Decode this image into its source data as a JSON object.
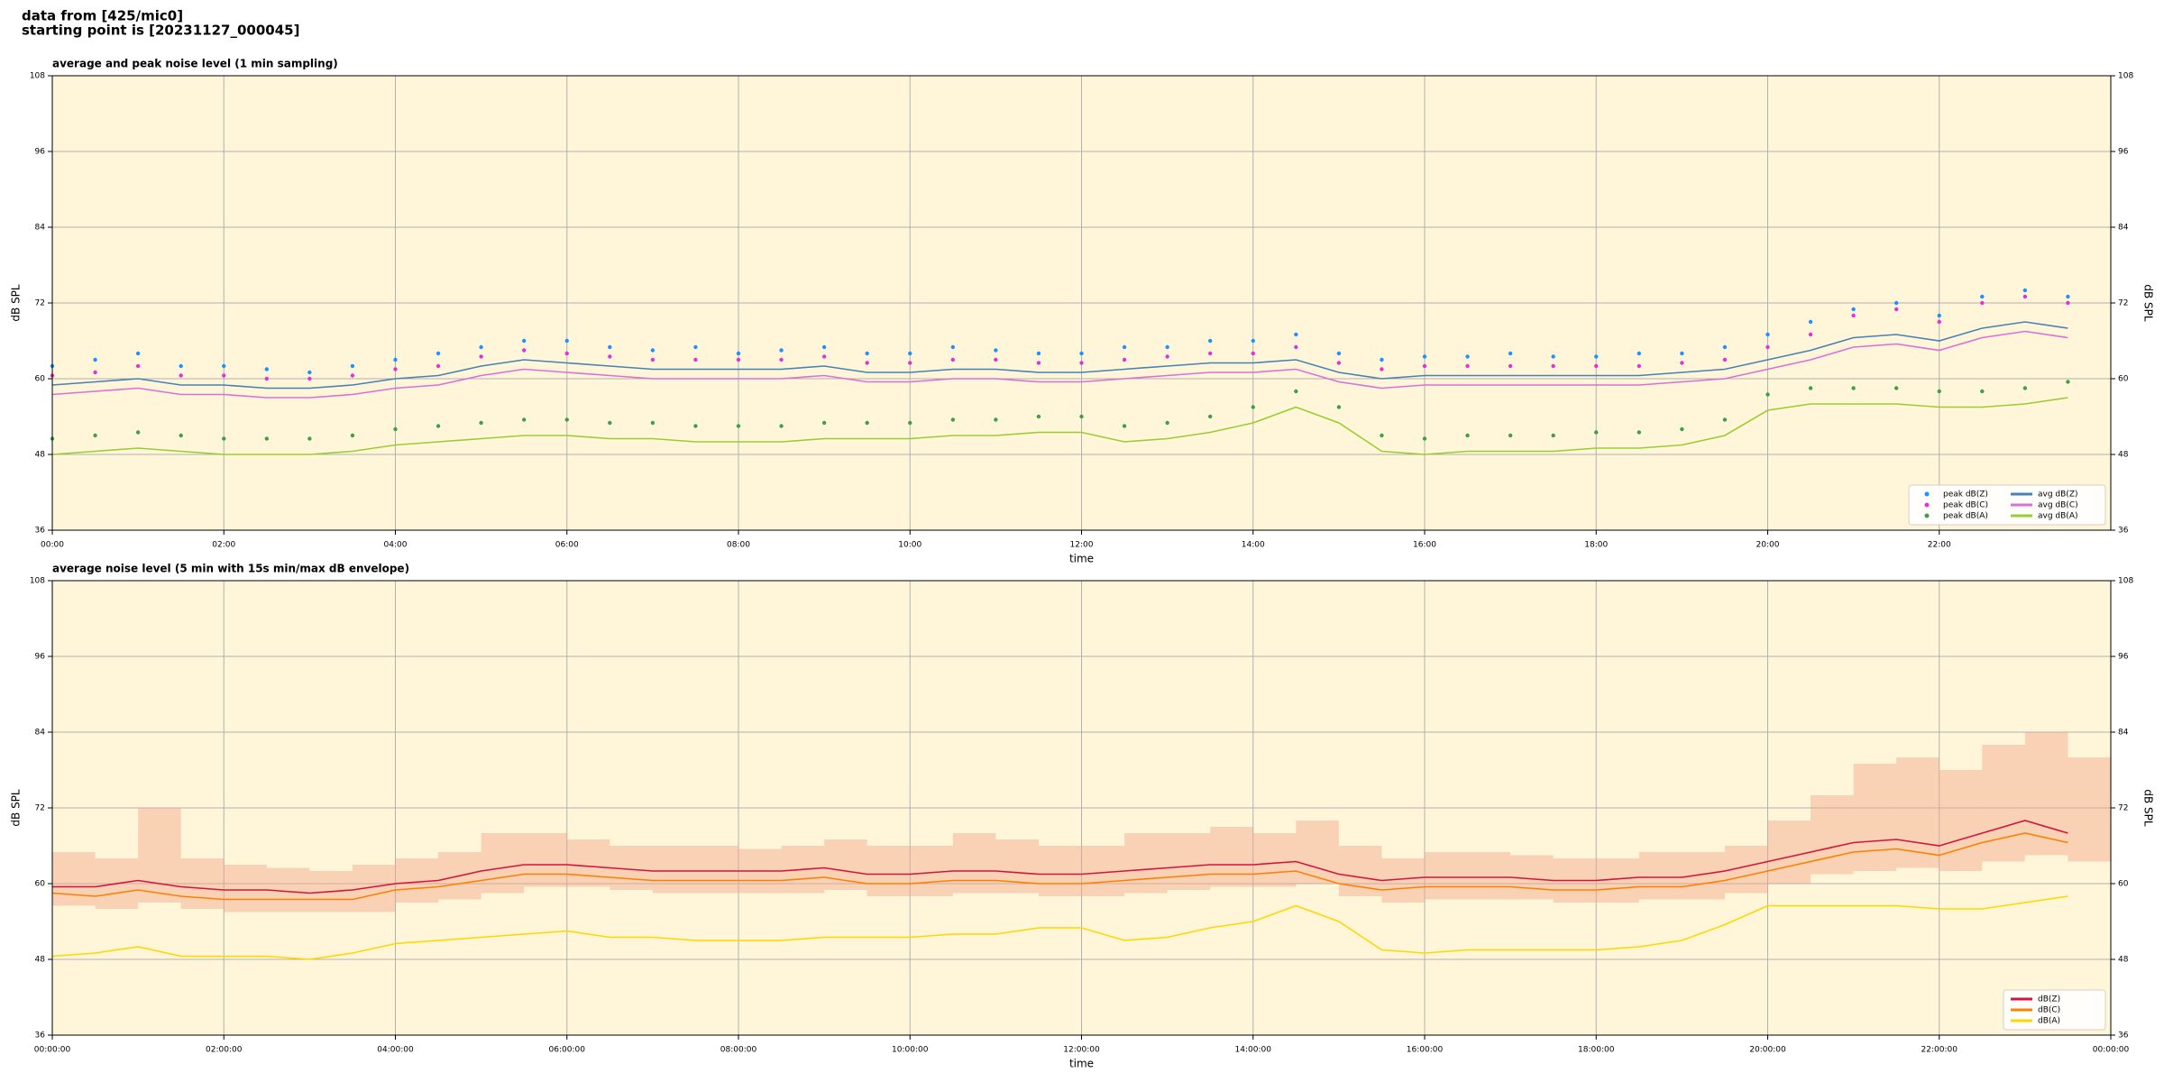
{
  "header": {
    "lines": [
      "data from [425/mic0]",
      "starting point is [20231127_000045]"
    ]
  },
  "chart_data": [
    {
      "type": "line",
      "title": "average and peak noise level (1 min sampling)",
      "x_label": "time",
      "y_label": "dB SPL",
      "background": "#fff6d9",
      "grid": true,
      "legend": "lower right",
      "legend_columns": 2,
      "xlim": [
        0,
        24
      ],
      "ylim": [
        36,
        108
      ],
      "yticks": [
        36,
        48,
        60,
        72,
        84,
        96,
        108
      ],
      "xticks": [
        {
          "value": 0,
          "label": "00:00"
        },
        {
          "value": 2,
          "label": "02:00"
        },
        {
          "value": 4,
          "label": "04:00"
        },
        {
          "value": 6,
          "label": "06:00"
        },
        {
          "value": 8,
          "label": "08:00"
        },
        {
          "value": 10,
          "label": "10:00"
        },
        {
          "value": 12,
          "label": "12:00"
        },
        {
          "value": 14,
          "label": "14:00"
        },
        {
          "value": 16,
          "label": "16:00"
        },
        {
          "value": 18,
          "label": "18:00"
        },
        {
          "value": 20,
          "label": "20:00"
        },
        {
          "value": 22,
          "label": "22:00"
        }
      ],
      "x": [
        0,
        0.5,
        1,
        1.5,
        2,
        2.5,
        3,
        3.5,
        4,
        4.5,
        5,
        5.5,
        6,
        6.5,
        7,
        7.5,
        8,
        8.5,
        9,
        9.5,
        10,
        10.5,
        11,
        11.5,
        12,
        12.5,
        13,
        13.5,
        14,
        14.5,
        15,
        15.5,
        16,
        16.5,
        17,
        17.5,
        18,
        18.5,
        19,
        19.5,
        20,
        20.5,
        21,
        21.5,
        22,
        22.5,
        23,
        23.5
      ],
      "series": [
        {
          "name": "peak dB(Z)",
          "type": "scatter",
          "color": "#1e90ff",
          "values": [
            62,
            63,
            64,
            62,
            62,
            61.5,
            61,
            62,
            63,
            64,
            65,
            66,
            66,
            65,
            64.5,
            65,
            64,
            64.5,
            65,
            64,
            64,
            65,
            64.5,
            64,
            64,
            65,
            65,
            66,
            66,
            67,
            64,
            63,
            63.5,
            63.5,
            64,
            63.5,
            63.5,
            64,
            64,
            65,
            67,
            69,
            71,
            72,
            70,
            73,
            74,
            73
          ]
        },
        {
          "name": "peak dB(C)",
          "type": "scatter",
          "color": "#e033d6",
          "values": [
            60.5,
            61,
            62,
            60.5,
            60.5,
            60,
            60,
            60.5,
            61.5,
            62,
            63.5,
            64.5,
            64,
            63.5,
            63,
            63,
            63,
            63,
            63.5,
            62.5,
            62.5,
            63,
            63,
            62.5,
            62.5,
            63,
            63.5,
            64,
            64,
            65,
            62.5,
            61.5,
            62,
            62,
            62,
            62,
            62,
            62,
            62.5,
            63,
            65,
            67,
            70,
            71,
            69,
            72,
            73,
            72
          ]
        },
        {
          "name": "peak dB(A)",
          "type": "scatter",
          "color": "#3e9e4a",
          "values": [
            50.5,
            51,
            51.5,
            51,
            50.5,
            50.5,
            50.5,
            51,
            52,
            52.5,
            53,
            53.5,
            53.5,
            53,
            53,
            52.5,
            52.5,
            52.5,
            53,
            53,
            53,
            53.5,
            53.5,
            54,
            54,
            52.5,
            53,
            54,
            55.5,
            58,
            55.5,
            51,
            50.5,
            51,
            51,
            51,
            51.5,
            51.5,
            52,
            53.5,
            57.5,
            58.5,
            58.5,
            58.5,
            58,
            58,
            58.5,
            59.5
          ]
        },
        {
          "name": "avg dB(Z)",
          "type": "line",
          "color": "#4682b4",
          "values": [
            59,
            59.5,
            60,
            59,
            59,
            58.5,
            58.5,
            59,
            60,
            60.5,
            62,
            63,
            62.5,
            62,
            61.5,
            61.5,
            61.5,
            61.5,
            62,
            61,
            61,
            61.5,
            61.5,
            61,
            61,
            61.5,
            62,
            62.5,
            62.5,
            63,
            61,
            60,
            60.5,
            60.5,
            60.5,
            60.5,
            60.5,
            60.5,
            61,
            61.5,
            63,
            64.5,
            66.5,
            67,
            66,
            68,
            69,
            68
          ]
        },
        {
          "name": "avg dB(C)",
          "type": "line",
          "color": "#da70d6",
          "values": [
            57.5,
            58,
            58.5,
            57.5,
            57.5,
            57,
            57,
            57.5,
            58.5,
            59,
            60.5,
            61.5,
            61,
            60.5,
            60,
            60,
            60,
            60,
            60.5,
            59.5,
            59.5,
            60,
            60,
            59.5,
            59.5,
            60,
            60.5,
            61,
            61,
            61.5,
            59.5,
            58.5,
            59,
            59,
            59,
            59,
            59,
            59,
            59.5,
            60,
            61.5,
            63,
            65,
            65.5,
            64.5,
            66.5,
            67.5,
            66.5
          ]
        },
        {
          "name": "avg dB(A)",
          "type": "line",
          "color": "#9acd32",
          "values": [
            48,
            48.5,
            49,
            48.5,
            48,
            48,
            48,
            48.5,
            49.5,
            50,
            50.5,
            51,
            51,
            50.5,
            50.5,
            50,
            50,
            50,
            50.5,
            50.5,
            50.5,
            51,
            51,
            51.5,
            51.5,
            50,
            50.5,
            51.5,
            53,
            55.5,
            53,
            48.5,
            48,
            48.5,
            48.5,
            48.5,
            49,
            49,
            49.5,
            51,
            55,
            56,
            56,
            56,
            55.5,
            55.5,
            56,
            57
          ]
        }
      ]
    },
    {
      "type": "line",
      "title": "average noise level (5 min with 15s min/max dB envelope)",
      "x_label": "time",
      "y_label": "dB SPL",
      "background": "#fff6d9",
      "grid": true,
      "legend": "lower right",
      "legend_columns": 1,
      "xlim": [
        0,
        24
      ],
      "ylim": [
        36,
        108
      ],
      "yticks": [
        36,
        48,
        60,
        72,
        84,
        96,
        108
      ],
      "xticks": [
        {
          "value": 0,
          "label": "00:00:00"
        },
        {
          "value": 2,
          "label": "02:00:00"
        },
        {
          "value": 4,
          "label": "04:00:00"
        },
        {
          "value": 6,
          "label": "06:00:00"
        },
        {
          "value": 8,
          "label": "08:00:00"
        },
        {
          "value": 10,
          "label": "10:00:00"
        },
        {
          "value": 12,
          "label": "12:00:00"
        },
        {
          "value": 14,
          "label": "14:00:00"
        },
        {
          "value": 16,
          "label": "16:00:00"
        },
        {
          "value": 18,
          "label": "18:00:00"
        },
        {
          "value": 20,
          "label": "20:00:00"
        },
        {
          "value": 22,
          "label": "22:00:00"
        },
        {
          "value": 24,
          "label": "00:00:00"
        }
      ],
      "x": [
        0,
        0.5,
        1,
        1.5,
        2,
        2.5,
        3,
        3.5,
        4,
        4.5,
        5,
        5.5,
        6,
        6.5,
        7,
        7.5,
        8,
        8.5,
        9,
        9.5,
        10,
        10.5,
        11,
        11.5,
        12,
        12.5,
        13,
        13.5,
        14,
        14.5,
        15,
        15.5,
        16,
        16.5,
        17,
        17.5,
        18,
        18.5,
        19,
        19.5,
        20,
        20.5,
        21,
        21.5,
        22,
        22.5,
        23,
        23.5
      ],
      "envelope": {
        "color": "#f2a58a",
        "low": [
          56.5,
          56,
          57,
          56,
          55.5,
          55.5,
          55.5,
          55.5,
          57,
          57.5,
          58.5,
          59.5,
          59.5,
          59,
          58.5,
          58.5,
          58.5,
          58.5,
          59,
          58,
          58,
          58.5,
          58.5,
          58,
          58,
          58.5,
          59,
          59.5,
          59.5,
          60,
          58,
          57,
          57.5,
          57.5,
          57.5,
          57,
          57,
          57.5,
          57.5,
          58.5,
          60,
          61.5,
          62,
          62.5,
          62,
          63.5,
          64.5,
          63.5
        ],
        "high": [
          65,
          64,
          72,
          64,
          63,
          62.5,
          62,
          63,
          64,
          65,
          68,
          68,
          67,
          66,
          66,
          66,
          65.5,
          66,
          67,
          66,
          66,
          68,
          67,
          66,
          66,
          68,
          68,
          69,
          68,
          70,
          66,
          64,
          65,
          65,
          64.5,
          64,
          64,
          65,
          65,
          66,
          70,
          74,
          79,
          80,
          78,
          82,
          84,
          80
        ]
      },
      "series": [
        {
          "name": "dB(Z)",
          "type": "line",
          "color": "#d4143c",
          "values": [
            59.5,
            59.5,
            60.5,
            59.5,
            59,
            59,
            58.5,
            59,
            60,
            60.5,
            62,
            63,
            63,
            62.5,
            62,
            62,
            62,
            62,
            62.5,
            61.5,
            61.5,
            62,
            62,
            61.5,
            61.5,
            62,
            62.5,
            63,
            63,
            63.5,
            61.5,
            60.5,
            61,
            61,
            61,
            60.5,
            60.5,
            61,
            61,
            62,
            63.5,
            65,
            66.5,
            67,
            66,
            68,
            70,
            68
          ]
        },
        {
          "name": "dB(C)",
          "type": "line",
          "color": "#ff8000",
          "values": [
            58.5,
            58,
            59,
            58,
            57.5,
            57.5,
            57.5,
            57.5,
            59,
            59.5,
            60.5,
            61.5,
            61.5,
            61,
            60.5,
            60.5,
            60.5,
            60.5,
            61,
            60,
            60,
            60.5,
            60.5,
            60,
            60,
            60.5,
            61,
            61.5,
            61.5,
            62,
            60,
            59,
            59.5,
            59.5,
            59.5,
            59,
            59,
            59.5,
            59.5,
            60.5,
            62,
            63.5,
            65,
            65.5,
            64.5,
            66.5,
            68,
            66.5
          ]
        },
        {
          "name": "dB(A)",
          "type": "line",
          "color": "#ffd700",
          "values": [
            48.5,
            49,
            50,
            48.5,
            48.5,
            48.5,
            48,
            49,
            50.5,
            51,
            51.5,
            52,
            52.5,
            51.5,
            51.5,
            51,
            51,
            51,
            51.5,
            51.5,
            51.5,
            52,
            52,
            53,
            53,
            51,
            51.5,
            53,
            54,
            56.5,
            54,
            49.5,
            49,
            49.5,
            49.5,
            49.5,
            49.5,
            50,
            51,
            53.5,
            56.5,
            56.5,
            56.5,
            56.5,
            56,
            56,
            57,
            58
          ]
        }
      ]
    }
  ]
}
